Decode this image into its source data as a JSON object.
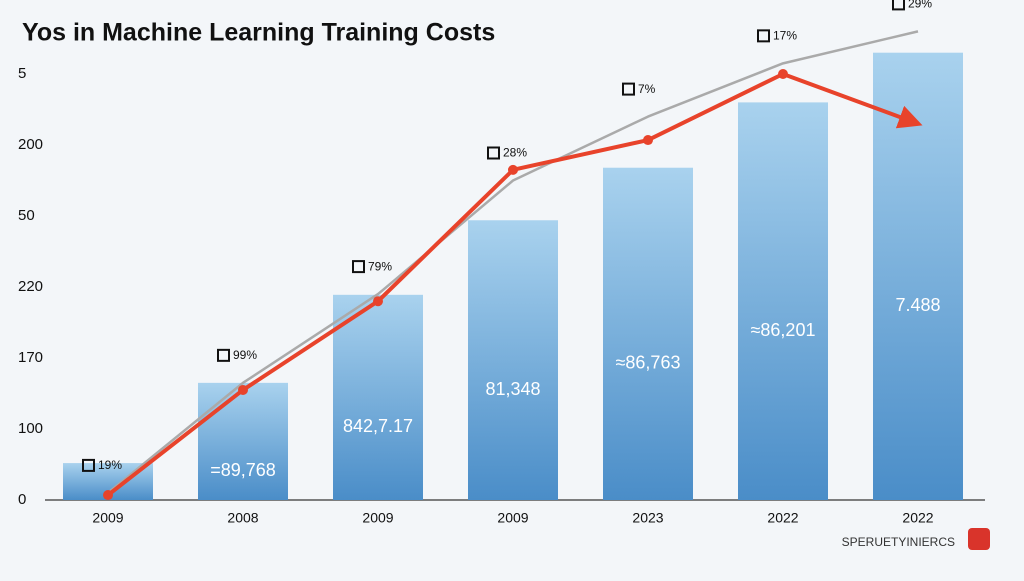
{
  "chart_data": {
    "type": "bar",
    "title": "Yos in Machine Learning Training Costs",
    "categories": [
      "2009",
      "2008",
      "2009",
      "2009",
      "2023",
      "2022",
      "2022"
    ],
    "values": [
      0.52,
      1.65,
      2.89,
      3.94,
      4.68,
      5.6,
      6.3
    ],
    "color": "#5b9fd6",
    "bar_labels": [
      null,
      "=89,768",
      "842,7.17",
      "81,348",
      "≈86,763",
      "≈86,201",
      "7.488"
    ],
    "ylim": [
      0,
      6.8
    ],
    "yticks": [
      0,
      {
        "value": 1,
        "label": "100"
      },
      {
        "value": 2,
        "label": "170"
      },
      {
        "value": 3,
        "label": "220"
      },
      {
        "value": 4,
        "label": "50"
      },
      {
        "value": 5,
        "label": "200"
      },
      {
        "value": 6,
        "label": "5"
      }
    ],
    "lines": [
      {
        "color": "#aaaaaa",
        "values": [
          0.1,
          1.65,
          2.9,
          4.5,
          5.4,
          6.15,
          6.6
        ],
        "point_labels": [
          "19%",
          "99%",
          "79%",
          "28%",
          "7%",
          "17%",
          "29%"
        ]
      },
      {
        "color": "#e8432b",
        "values": [
          0.07,
          1.55,
          2.8,
          4.65,
          5.07,
          6.0,
          5.3
        ]
      }
    ],
    "footer": "SPERUETYINIERCS"
  }
}
